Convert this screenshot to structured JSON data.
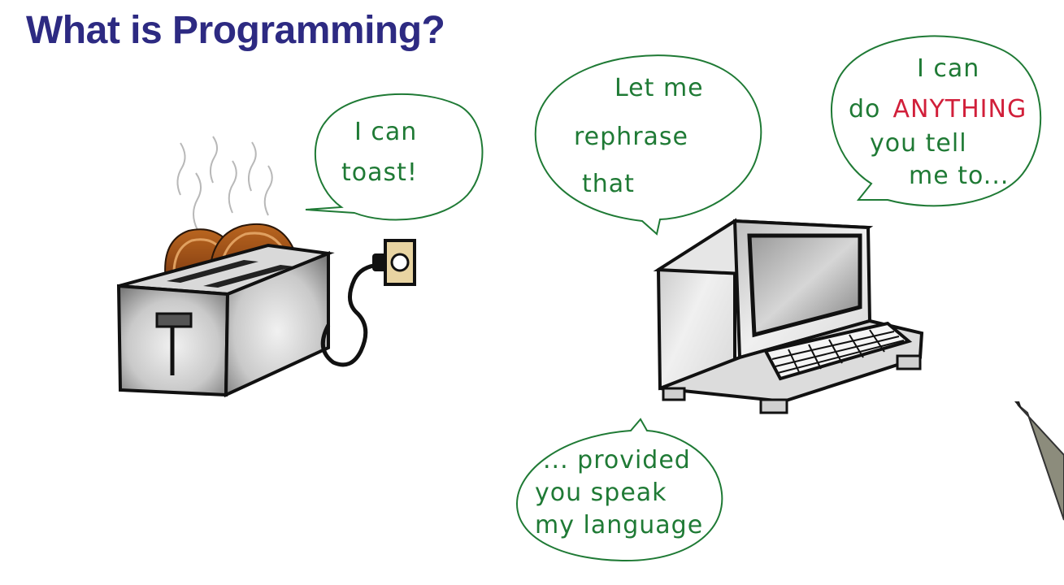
{
  "title": "What is Programming?",
  "bubbles": {
    "toaster": {
      "line1": "I can",
      "line2": "toast!"
    },
    "computer_left": {
      "line1": "Let me",
      "line2": "rephrase",
      "line3": "that"
    },
    "computer_right": {
      "line1": "I can",
      "line2_prefix": "do",
      "line2_emphasis": "ANYTHING",
      "line3": "you tell",
      "line4": "me to..."
    },
    "bottom": {
      "line1": "... provided",
      "line2": "you speak",
      "line3": "my language"
    }
  },
  "colors": {
    "title": "#2d2a82",
    "bubble_ink": "#1f7a35",
    "emphasis": "#d11f3a"
  },
  "illustrations": [
    "toaster",
    "toast-slices",
    "steam",
    "power-plug",
    "outlet",
    "computer-terminal",
    "keyboard",
    "pen"
  ]
}
